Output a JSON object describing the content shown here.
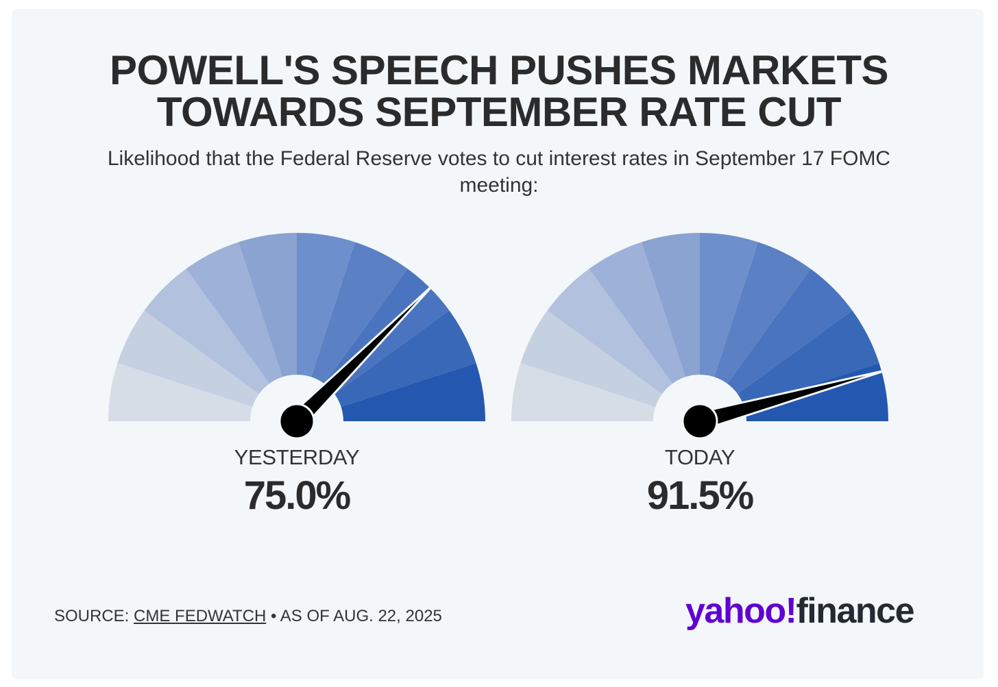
{
  "title_line1": "POWELL'S SPEECH PUSHES MARKETS",
  "title_line2": "TOWARDS SEPTEMBER RATE CUT",
  "subtitle": "Likelihood that the Federal Reserve votes to cut interest rates in September 17 FOMC meeting:",
  "chart_data": {
    "type": "gauge",
    "range": [
      0,
      100
    ],
    "unit": "%",
    "segment_count": 10,
    "segment_colors": [
      "#d6dde7",
      "#c5d0e1",
      "#b2c1dd",
      "#9eb1d8",
      "#8aa3d1",
      "#6d8fcb",
      "#5b80c4",
      "#4a74bf",
      "#3868b7",
      "#2458b0"
    ],
    "needle_color": "#000000",
    "gauges": [
      {
        "label": "YESTERDAY",
        "value": 75.0,
        "value_text": "75.0%"
      },
      {
        "label": "TODAY",
        "value": 91.5,
        "value_text": "91.5%"
      }
    ]
  },
  "footer": {
    "source_prefix": "SOURCE:",
    "source_link": "CME FEDWATCH",
    "source_suffix": "• AS OF AUG. 22, 2025"
  },
  "logo": {
    "part1": "yahoo!",
    "part2": "finance",
    "brand_color": "#6001d2",
    "text_color": "#232a31"
  }
}
